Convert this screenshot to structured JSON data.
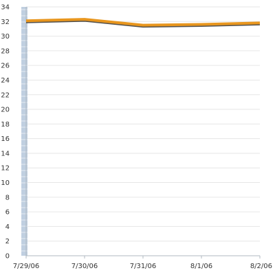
{
  "chart_data": {
    "type": "line",
    "title": "",
    "xlabel": "",
    "ylabel": "",
    "x": [
      "7/29/06",
      "7/30/06",
      "7/31/06",
      "8/1/06",
      "8/2/06"
    ],
    "ylim": [
      0,
      34
    ],
    "y_ticks": [
      0,
      2,
      4,
      6,
      8,
      10,
      12,
      14,
      16,
      18,
      20,
      22,
      24,
      26,
      28,
      30,
      32,
      34
    ],
    "grid": true,
    "legend": "none",
    "series": [
      {
        "values": [
          32.1,
          32.3,
          31.5,
          31.6,
          31.8
        ],
        "color": "#e8961e",
        "shadow_color": "#333333"
      }
    ],
    "highlight_band": {
      "x": "7/29/06",
      "color": "#c0cfe0"
    },
    "axis_color": "#b0b8c0",
    "grid_color": "#e6e6e6"
  }
}
